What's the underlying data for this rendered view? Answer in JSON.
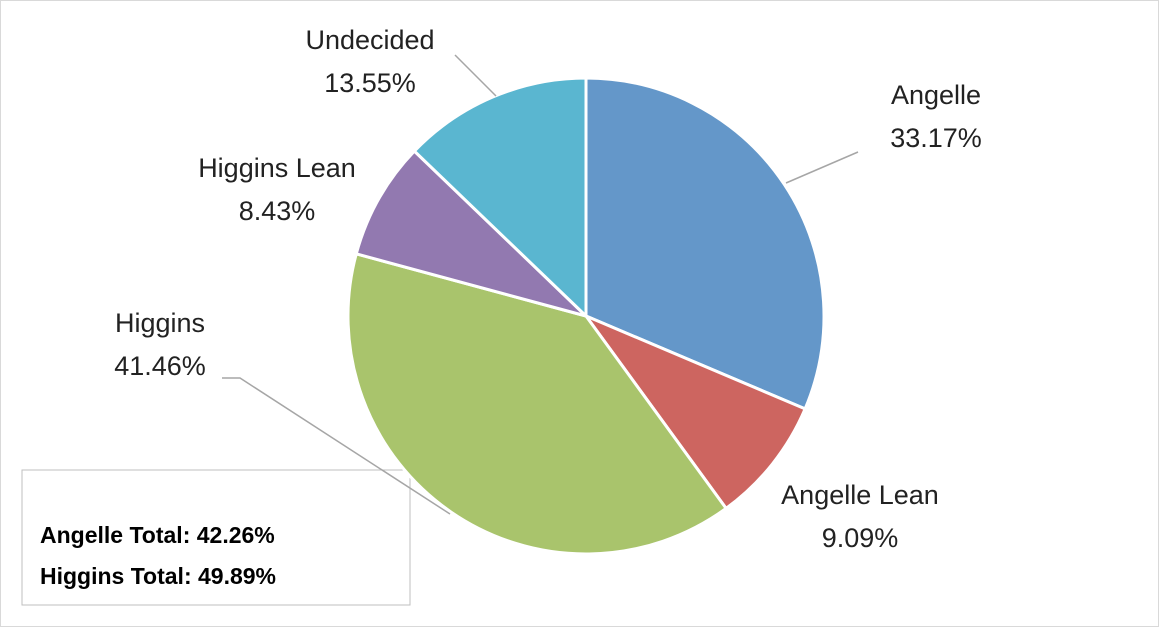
{
  "chart_data": {
    "type": "pie",
    "categories": [
      "Angelle",
      "Angelle Lean",
      "Higgins",
      "Higgins Lean",
      "Undecided"
    ],
    "values": [
      33.17,
      9.09,
      41.46,
      8.43,
      13.55
    ],
    "value_labels": [
      "33.17%",
      "9.09%",
      "41.46%",
      "8.43%",
      "13.55%"
    ],
    "colors": [
      "#6497c9",
      "#cd6560",
      "#a9c46c",
      "#9279b0",
      "#5ab6d0"
    ],
    "annotations": [
      "Angelle Total: 42.26%",
      "Higgins Total: 49.89%"
    ]
  }
}
